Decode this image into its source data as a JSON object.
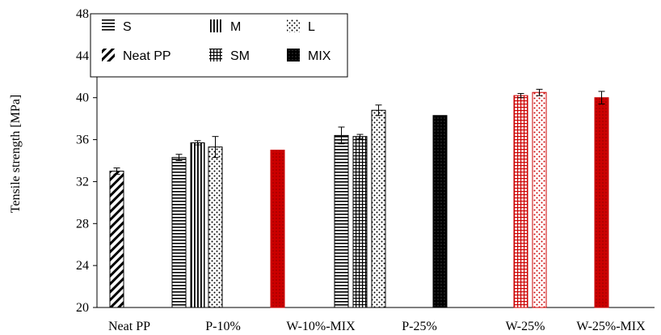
{
  "chart_data": {
    "type": "bar",
    "title": "",
    "xlabel": "",
    "ylabel": "Tensile strength [MPa]",
    "ylim": [
      20,
      48
    ],
    "yticks": [
      20,
      24,
      28,
      32,
      36,
      40,
      44,
      48
    ],
    "grid": false,
    "legend": {
      "placement": "top-left",
      "entries": [
        {
          "key": "S",
          "label": "S",
          "pattern": "horizontal-lines"
        },
        {
          "key": "M",
          "label": "M",
          "pattern": "vertical-lines"
        },
        {
          "key": "L",
          "label": "L",
          "pattern": "dots"
        },
        {
          "key": "NeatPP",
          "label": "Neat PP",
          "pattern": "diagonal-lines"
        },
        {
          "key": "SM",
          "label": "SM",
          "pattern": "grid"
        },
        {
          "key": "MIX",
          "label": "MIX",
          "pattern": "dense-dots"
        }
      ]
    },
    "categories": [
      "Neat PP",
      "P-10%",
      "W-10%-MIX",
      "P-25%",
      "W-25%",
      "W-25%-MIX"
    ],
    "bars": [
      {
        "category": "Neat PP",
        "series": "NeatPP",
        "value": 33.0,
        "error": 0.3,
        "color": "#000000"
      },
      {
        "category": "P-10%",
        "series": "S",
        "value": 34.3,
        "error": 0.3,
        "color": "#000000"
      },
      {
        "category": "P-10%",
        "series": "M",
        "value": 35.7,
        "error": 0.2,
        "color": "#000000"
      },
      {
        "category": "P-10%",
        "series": "L",
        "value": 35.3,
        "error": 1.0,
        "color": "#000000"
      },
      {
        "category": "W-10%-MIX",
        "series": "MIX",
        "value": 35.0,
        "error": 0.0,
        "color": "#cc0000"
      },
      {
        "category": "W-10%-MIX",
        "series": "S",
        "value": 36.4,
        "error": 0.8,
        "color": "#000000"
      },
      {
        "category": "W-10%-MIX",
        "series": "SM",
        "value": 36.3,
        "error": 0.2,
        "color": "#000000"
      },
      {
        "category": "W-10%-MIX",
        "series": "L",
        "value": 38.8,
        "error": 0.5,
        "color": "#000000"
      },
      {
        "category": "P-25%",
        "series": "MIX",
        "value": 38.3,
        "error": 0.0,
        "color": "#000000"
      },
      {
        "category": "W-25%",
        "series": "SM",
        "value": 40.2,
        "error": 0.2,
        "color": "#cc0000"
      },
      {
        "category": "W-25%",
        "series": "L",
        "value": 40.5,
        "error": 0.3,
        "color": "#cc0000"
      },
      {
        "category": "W-25%-MIX",
        "series": "MIX",
        "value": 40.0,
        "error": 0.6,
        "color": "#cc0000"
      }
    ]
  }
}
